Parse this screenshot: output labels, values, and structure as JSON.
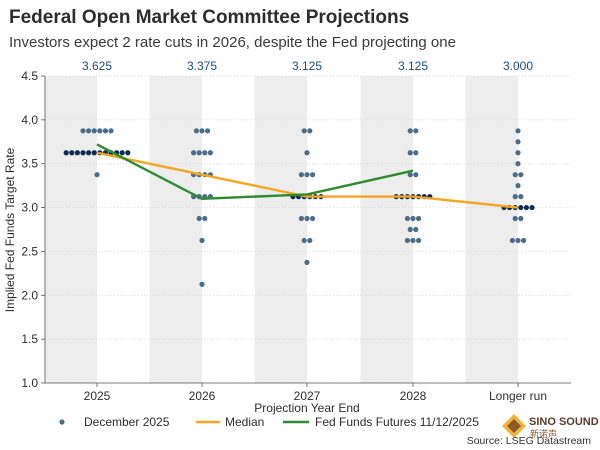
{
  "header": {
    "title": "Federal Open Market Committee Projections",
    "subtitle": "Investors expect 2 rate cuts in 2026, despite the Fed projecting one"
  },
  "chart_data": {
    "type": "scatter",
    "xlabel": "Projection Year End",
    "ylabel": "Implied Fed Funds Target Rate",
    "ylim": [
      1.0,
      4.5
    ],
    "yticks": [
      "1.0",
      "1.5",
      "2.0",
      "2.5",
      "3.0",
      "3.5",
      "4.0",
      "4.5"
    ],
    "categories": [
      "2025",
      "2026",
      "2027",
      "2028",
      "Longer run"
    ],
    "median_labels": [
      "3.625",
      "3.375",
      "3.125",
      "3.125",
      "3.000"
    ],
    "dots": [
      [
        {
          "rate": 3.875,
          "count": 6
        },
        {
          "rate": 3.625,
          "count": 12
        },
        {
          "rate": 3.375,
          "count": 1
        }
      ],
      [
        {
          "rate": 3.875,
          "count": 3
        },
        {
          "rate": 3.625,
          "count": 4
        },
        {
          "rate": 3.375,
          "count": 4
        },
        {
          "rate": 3.125,
          "count": 4
        },
        {
          "rate": 2.875,
          "count": 2
        },
        {
          "rate": 2.625,
          "count": 1
        },
        {
          "rate": 2.125,
          "count": 1
        }
      ],
      [
        {
          "rate": 3.875,
          "count": 2
        },
        {
          "rate": 3.625,
          "count": 1
        },
        {
          "rate": 3.375,
          "count": 3
        },
        {
          "rate": 3.125,
          "count": 6
        },
        {
          "rate": 2.875,
          "count": 3
        },
        {
          "rate": 2.625,
          "count": 2
        },
        {
          "rate": 2.375,
          "count": 1
        }
      ],
      [
        {
          "rate": 3.875,
          "count": 2
        },
        {
          "rate": 3.625,
          "count": 2
        },
        {
          "rate": 3.375,
          "count": 2
        },
        {
          "rate": 3.125,
          "count": 7
        },
        {
          "rate": 2.875,
          "count": 3
        },
        {
          "rate": 2.75,
          "count": 2
        },
        {
          "rate": 2.625,
          "count": 3
        }
      ],
      [
        {
          "rate": 3.875,
          "count": 1
        },
        {
          "rate": 3.75,
          "count": 1
        },
        {
          "rate": 3.625,
          "count": 1
        },
        {
          "rate": 3.5,
          "count": 1
        },
        {
          "rate": 3.375,
          "count": 2
        },
        {
          "rate": 3.25,
          "count": 1
        },
        {
          "rate": 3.125,
          "count": 2
        },
        {
          "rate": 3.0,
          "count": 6
        },
        {
          "rate": 2.875,
          "count": 2
        },
        {
          "rate": 2.625,
          "count": 3
        }
      ]
    ],
    "series": [
      {
        "name": "December 2025",
        "kind": "dots",
        "color": "#4a6d8c",
        "highlight_color": "#0d2c52"
      },
      {
        "name": "Median",
        "kind": "line",
        "color": "#f5a623",
        "values": [
          3.625,
          3.375,
          3.125,
          3.125,
          3.0
        ]
      },
      {
        "name": "Fed Funds Futures 11/12/2025",
        "kind": "line",
        "color": "#2e8b2e",
        "values": [
          3.72,
          3.1,
          3.15,
          3.42,
          null
        ]
      }
    ],
    "source": "Source: LSEG Datastream"
  },
  "logo": {
    "text": "SINO SOUND",
    "subtext": "新诺声"
  }
}
